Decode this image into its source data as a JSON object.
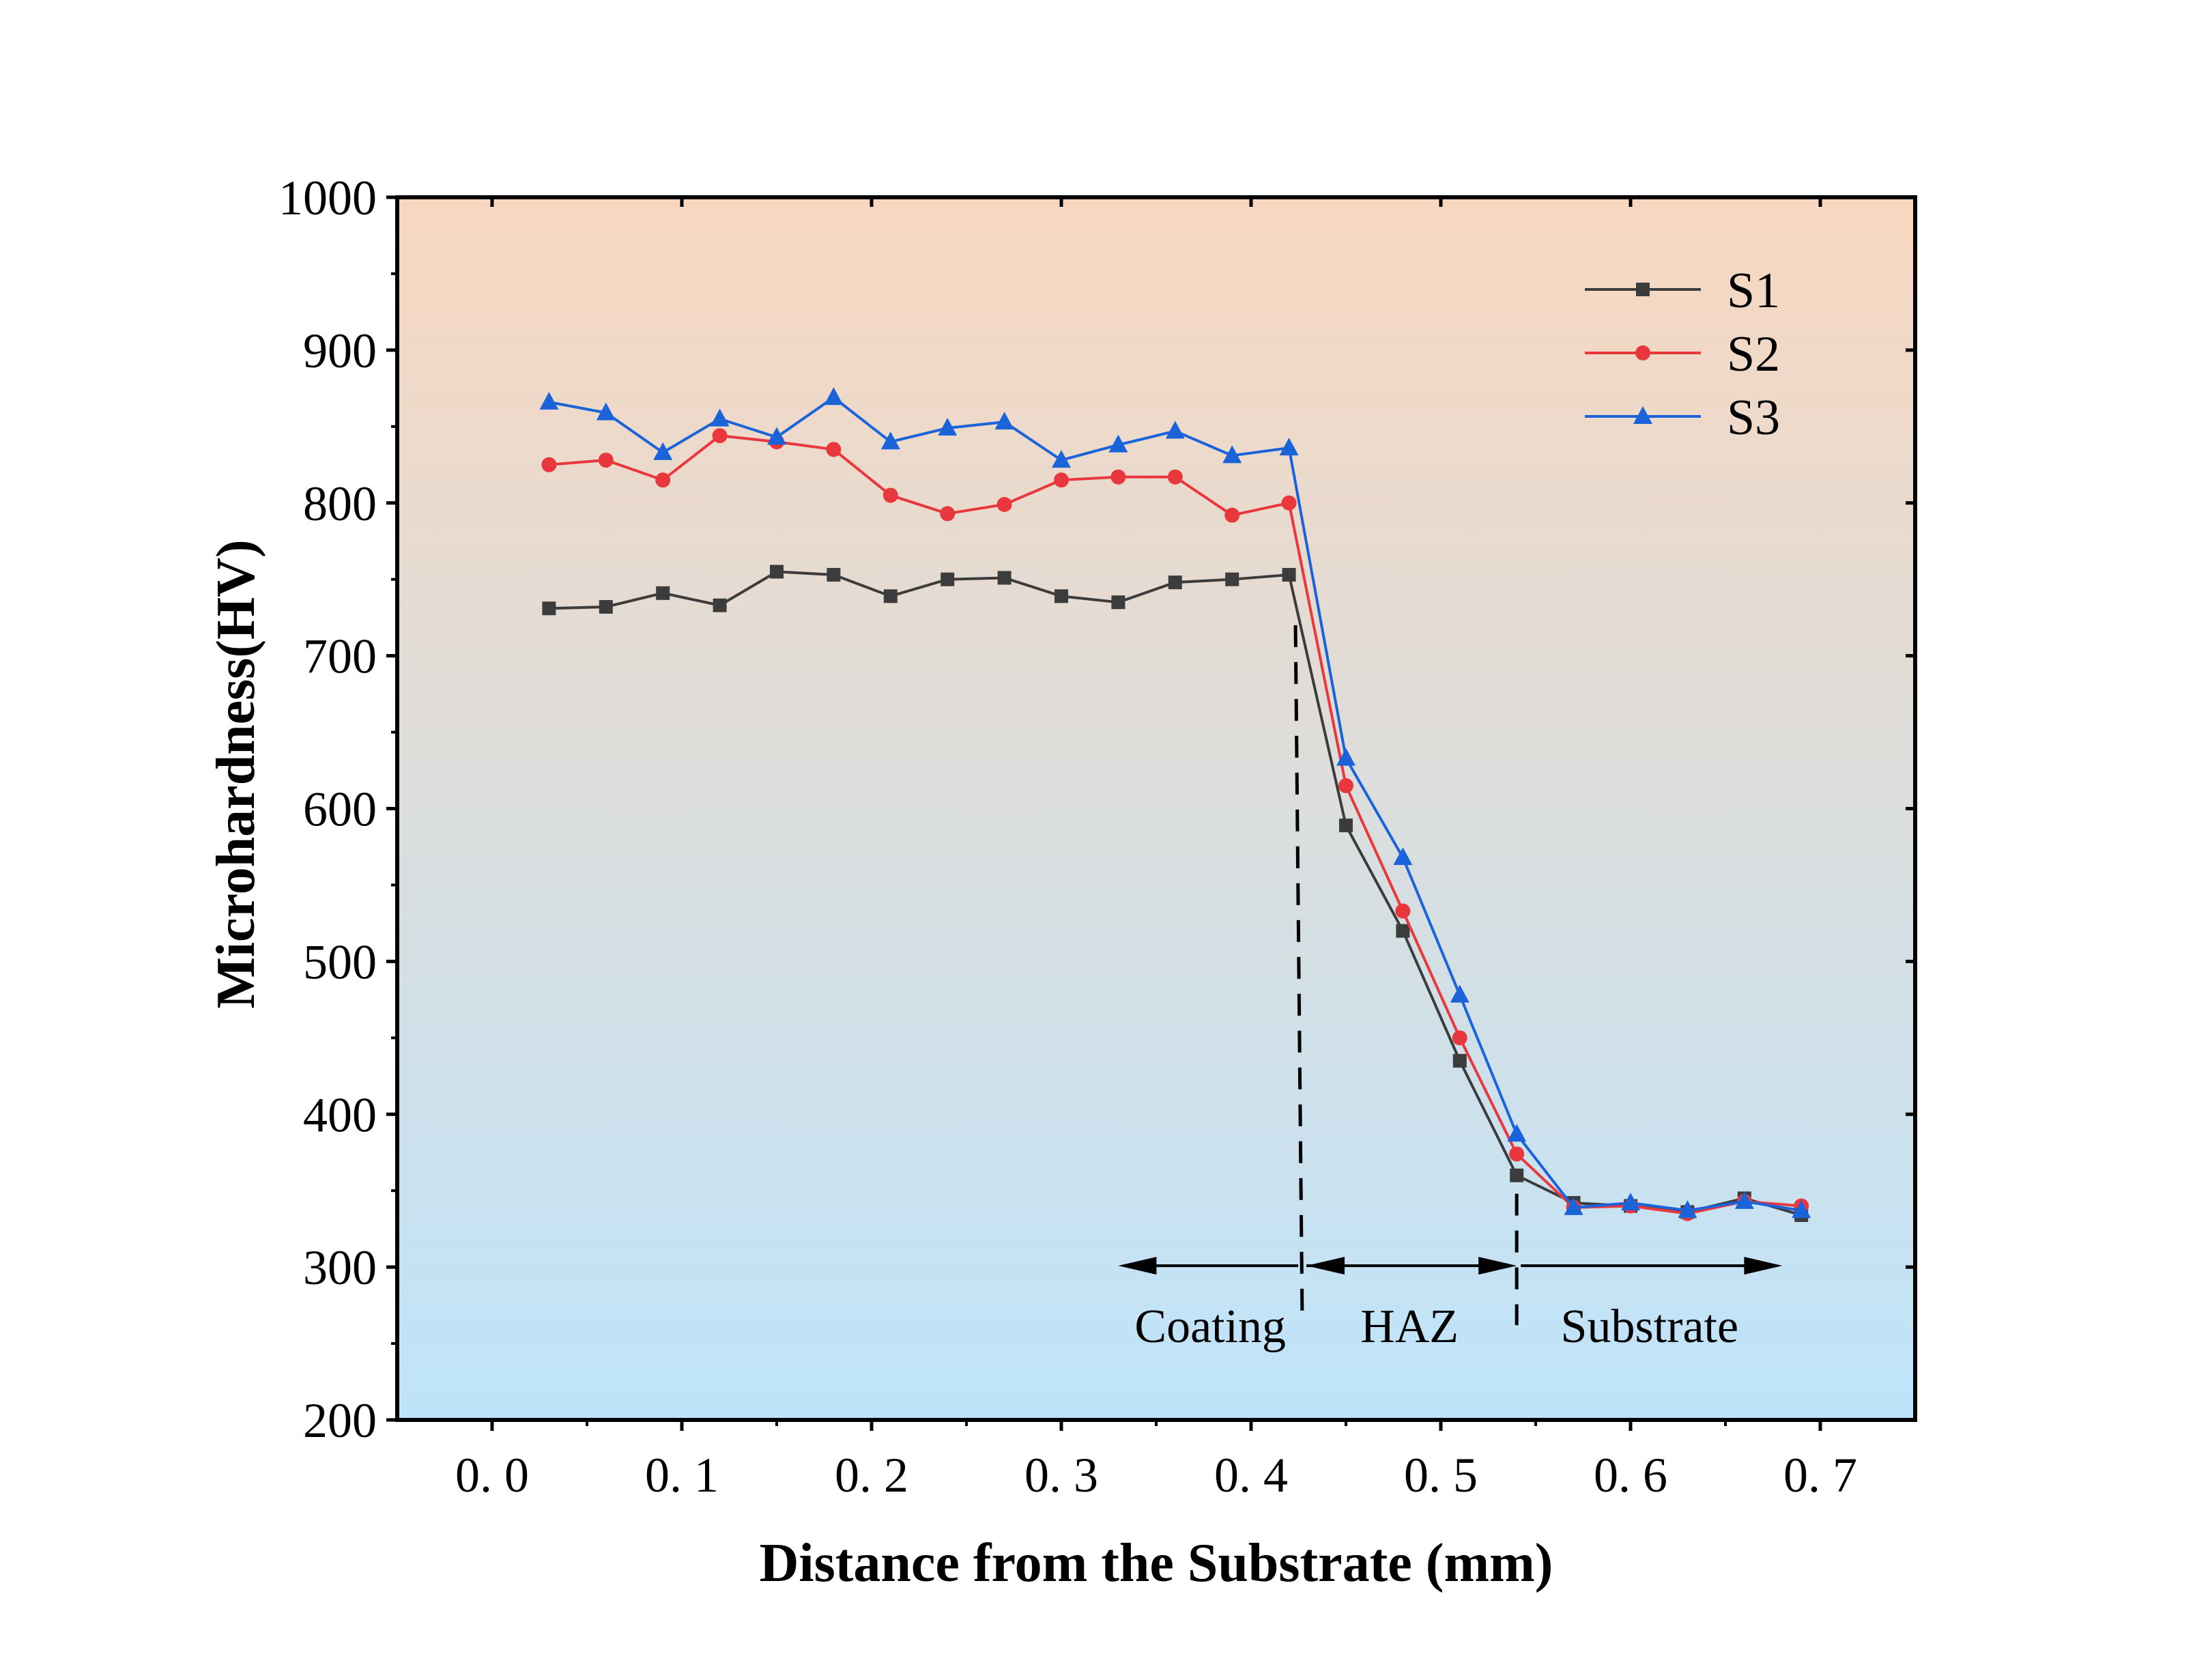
{
  "chart_data": {
    "type": "line",
    "xlabel": "Distance from the Substrate (mm)",
    "ylabel": "Microhardness(HV)",
    "xlim": [
      -0.05,
      0.75
    ],
    "ylim": [
      200,
      1000
    ],
    "x_ticks": [
      0.0,
      0.1,
      0.2,
      0.3,
      0.4,
      0.5,
      0.6,
      0.7
    ],
    "x_tick_labels": [
      "0. 0",
      "0. 1",
      "0. 2",
      "0. 3",
      "0. 4",
      "0. 5",
      "0. 6",
      "0. 7"
    ],
    "y_ticks": [
      200,
      300,
      400,
      500,
      600,
      700,
      800,
      900,
      1000
    ],
    "y_tick_labels": [
      "200",
      "300",
      "400",
      "500",
      "600",
      "700",
      "800",
      "900",
      "1000"
    ],
    "grid": false,
    "legend_position": "top-right",
    "background_gradient": {
      "top": "#f8d7bf",
      "bottom": "#bee4fb"
    },
    "x": [
      0.03,
      0.06,
      0.09,
      0.12,
      0.15,
      0.18,
      0.21,
      0.24,
      0.27,
      0.3,
      0.33,
      0.36,
      0.39,
      0.42,
      0.45,
      0.48,
      0.51,
      0.54,
      0.57,
      0.6,
      0.63,
      0.66,
      0.69
    ],
    "series": [
      {
        "name": "S1",
        "color": "#3c3c3c",
        "marker": "square",
        "values": [
          731,
          732,
          741,
          733,
          755,
          753,
          739,
          750,
          751,
          739,
          735,
          748,
          750,
          753,
          589,
          520,
          435,
          360,
          342,
          340,
          336,
          345,
          334
        ]
      },
      {
        "name": "S2",
        "color": "#e8383d",
        "marker": "circle",
        "values": [
          825,
          828,
          815,
          844,
          840,
          835,
          805,
          793,
          799,
          815,
          817,
          817,
          792,
          800,
          615,
          533,
          450,
          374,
          339,
          340,
          335,
          343,
          340
        ]
      },
      {
        "name": "S3",
        "color": "#1a63d8",
        "marker": "triangle",
        "values": [
          866,
          859,
          833,
          855,
          843,
          869,
          840,
          849,
          853,
          828,
          838,
          847,
          831,
          836,
          633,
          568,
          478,
          387,
          339,
          342,
          337,
          343,
          337
        ]
      }
    ],
    "annotations": {
      "boundaries": [
        0.427,
        0.54
      ],
      "arrow_y": 300,
      "regions": [
        {
          "label": "Coating",
          "from": 0.427,
          "to": 0.33
        },
        {
          "label": "HAZ",
          "from": 0.427,
          "to": 0.54
        },
        {
          "label": "Substrate",
          "from": 0.54,
          "to": 0.68
        }
      ]
    }
  }
}
